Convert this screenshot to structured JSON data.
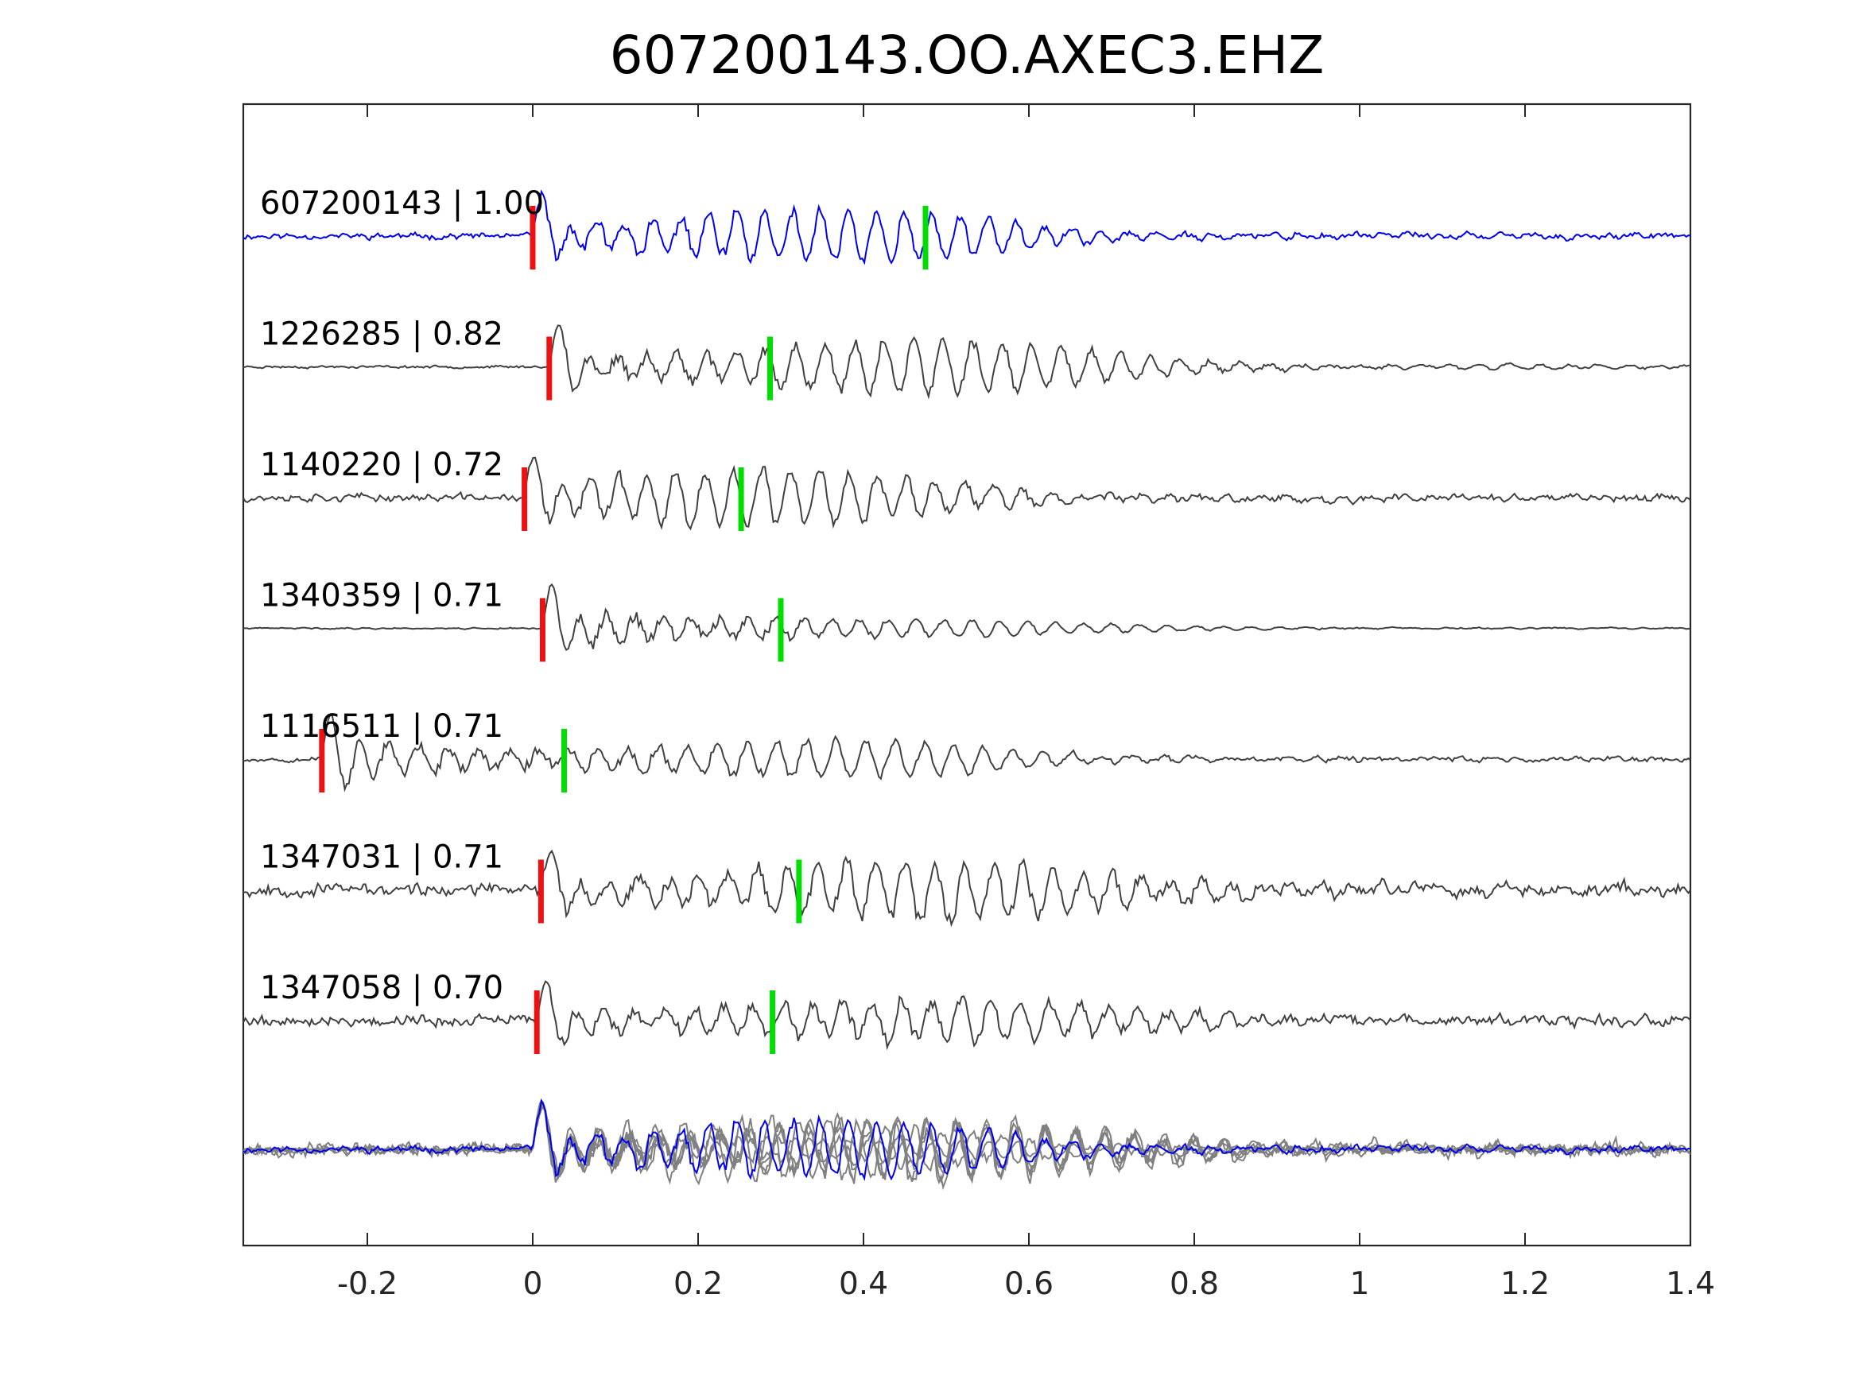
{
  "chart_data": {
    "type": "line",
    "title": "607200143.OO.AXEC3.EHZ",
    "xlabel": "",
    "ylabel": "",
    "xlim": [
      -0.35,
      1.4
    ],
    "x_ticks": [
      "-0.2",
      "0",
      "0.2",
      "0.4",
      "0.6",
      "0.8",
      "1",
      "1.2",
      "1.4"
    ],
    "x_tick_values": [
      -0.2,
      0,
      0.2,
      0.4,
      0.6,
      0.8,
      1,
      1.2,
      1.4
    ],
    "grid": false,
    "legend": "none",
    "colors": {
      "reference": "#0000ee",
      "matched": "#404040",
      "stack": "#808080",
      "p_pick": "#ee1111",
      "s_pick": "#00dd00",
      "axes": "#262626"
    },
    "series": [
      {
        "label": "607200143 | 1.00",
        "event": "607200143",
        "correlation": 1.0,
        "role": "reference",
        "p_pick": 0.0,
        "s_pick": 0.475,
        "onset": 0.0,
        "amplitude": 1.0,
        "period": 0.034,
        "duration": 0.55,
        "noise": 0.12,
        "seed": 11
      },
      {
        "label": "1226285 | 0.82",
        "event": "1226285",
        "correlation": 0.82,
        "role": "matched",
        "p_pick": 0.02,
        "s_pick": 0.287,
        "onset": 0.02,
        "amplitude": 1.0,
        "period": 0.036,
        "duration": 0.7,
        "noise": 0.05,
        "seed": 23
      },
      {
        "label": "1140220 | 0.72",
        "event": "1140220",
        "correlation": 0.72,
        "role": "matched",
        "p_pick": -0.01,
        "s_pick": 0.252,
        "onset": -0.01,
        "amplitude": 0.9,
        "period": 0.035,
        "duration": 0.6,
        "noise": 0.15,
        "seed": 37
      },
      {
        "label": "1340359 | 0.71",
        "event": "1340359",
        "correlation": 0.71,
        "role": "matched",
        "p_pick": 0.012,
        "s_pick": 0.3,
        "onset": 0.012,
        "amplitude": 1.0,
        "period": 0.034,
        "duration": 0.33,
        "noise": 0.03,
        "seed": 41
      },
      {
        "label": "1116511 | 0.71",
        "event": "1116511",
        "correlation": 0.71,
        "role": "matched",
        "p_pick": -0.255,
        "s_pick": 0.038,
        "onset": -0.255,
        "amplitude": 0.85,
        "period": 0.036,
        "duration": 0.75,
        "noise": 0.1,
        "seed": 53
      },
      {
        "label": "1347031 | 0.71",
        "event": "1347031",
        "correlation": 0.71,
        "role": "matched",
        "p_pick": 0.01,
        "s_pick": 0.322,
        "onset": 0.01,
        "amplitude": 1.0,
        "period": 0.036,
        "duration": 0.8,
        "noise": 0.25,
        "seed": 67
      },
      {
        "label": "1347058 | 0.70",
        "event": "1347058",
        "correlation": 0.7,
        "role": "matched",
        "p_pick": 0.005,
        "s_pick": 0.29,
        "onset": 0.005,
        "amplitude": 0.9,
        "period": 0.036,
        "duration": 0.7,
        "noise": 0.22,
        "seed": 79
      }
    ]
  }
}
